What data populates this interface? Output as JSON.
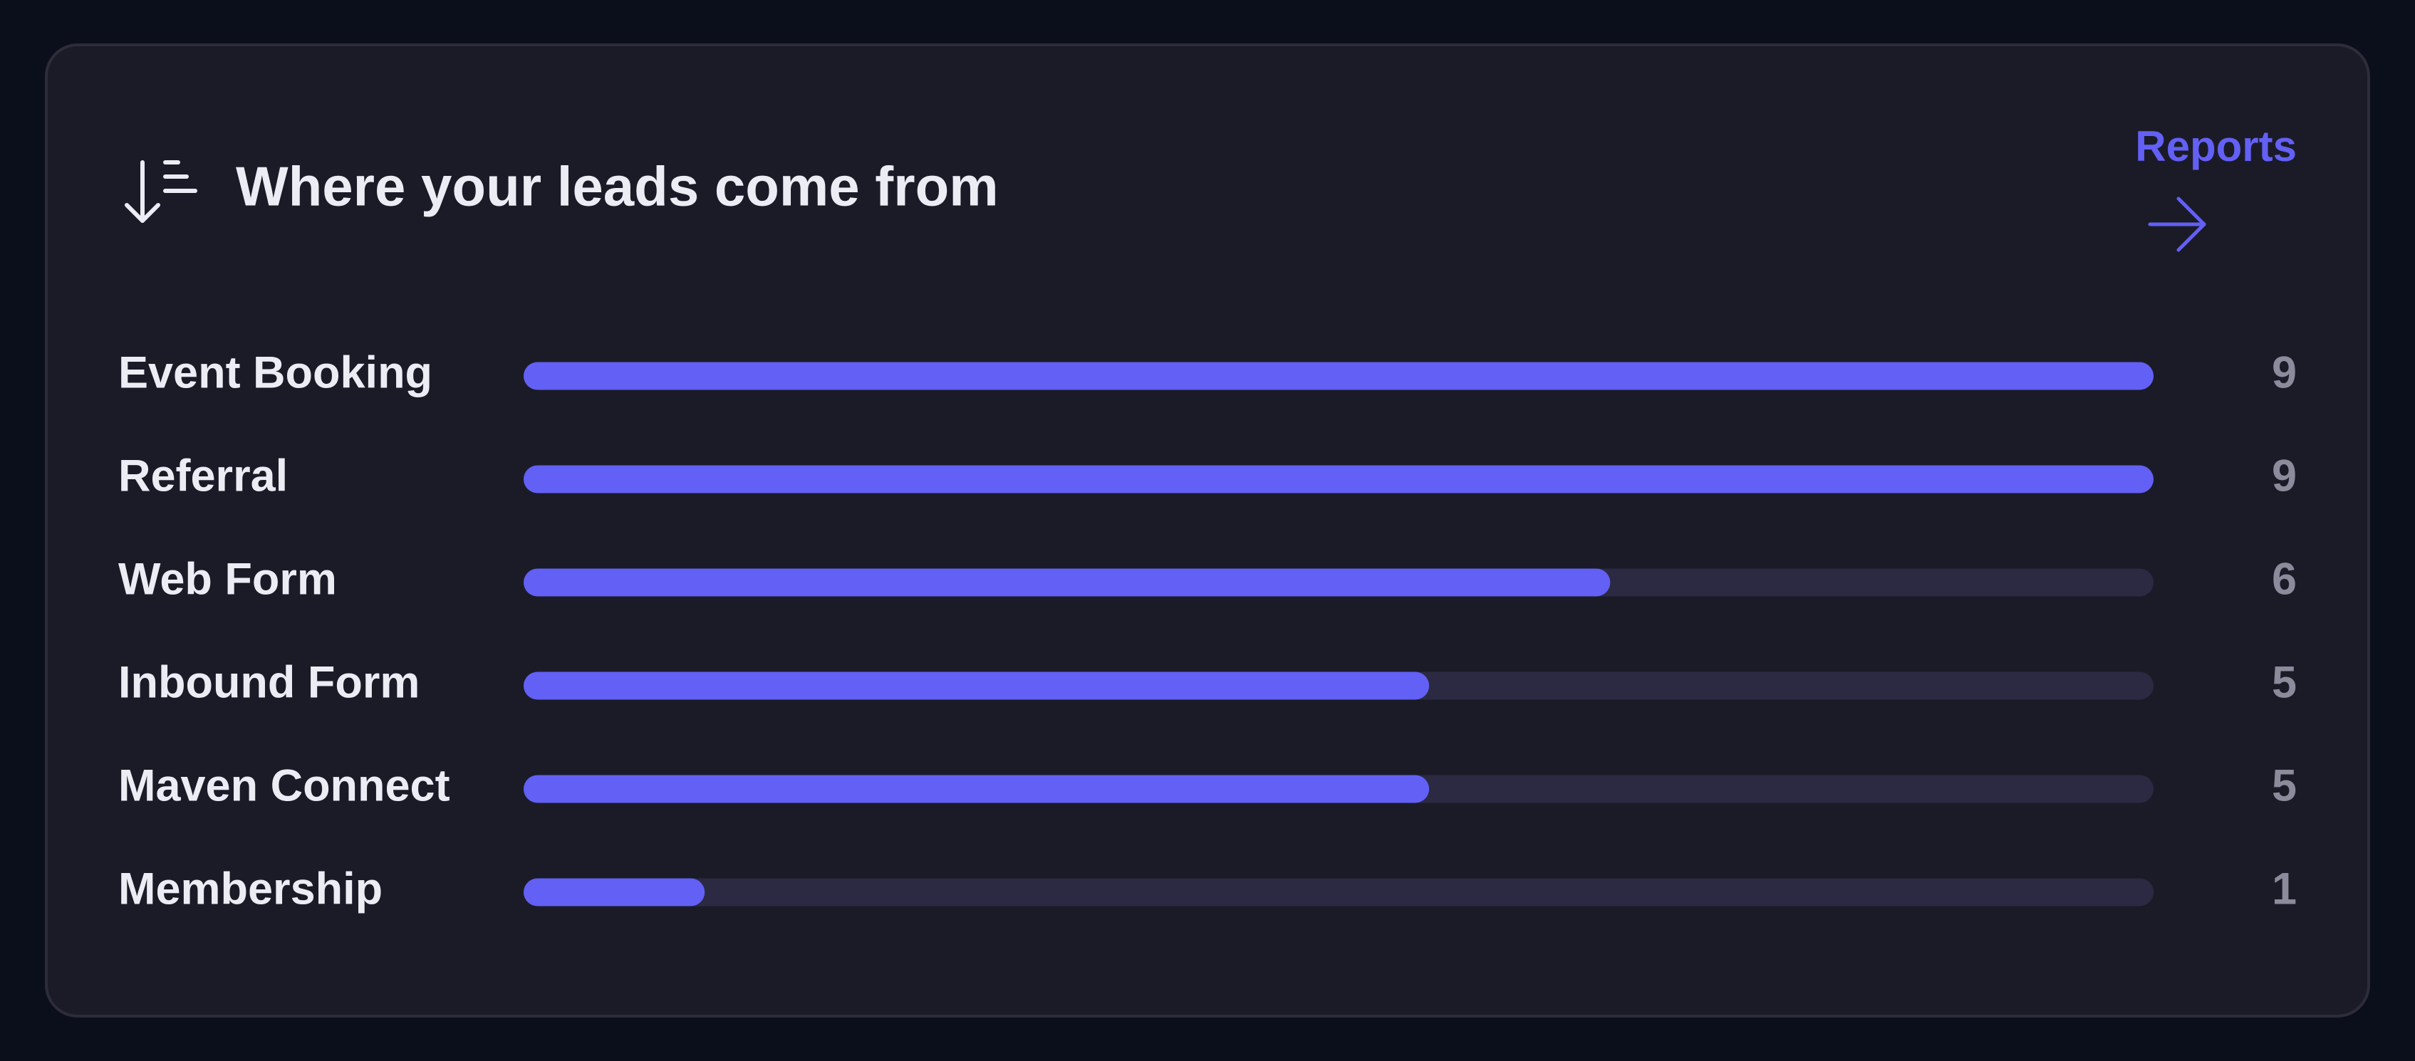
{
  "header": {
    "title": "Where your leads come from"
  },
  "link": {
    "label": "Reports"
  },
  "chart_data": {
    "type": "bar",
    "categories": [
      "Event Booking",
      "Referral",
      "Web Form",
      "Inbound Form",
      "Maven Connect",
      "Membership"
    ],
    "values": [
      9,
      9,
      6,
      5,
      5,
      1
    ],
    "color": "#6360f5"
  }
}
